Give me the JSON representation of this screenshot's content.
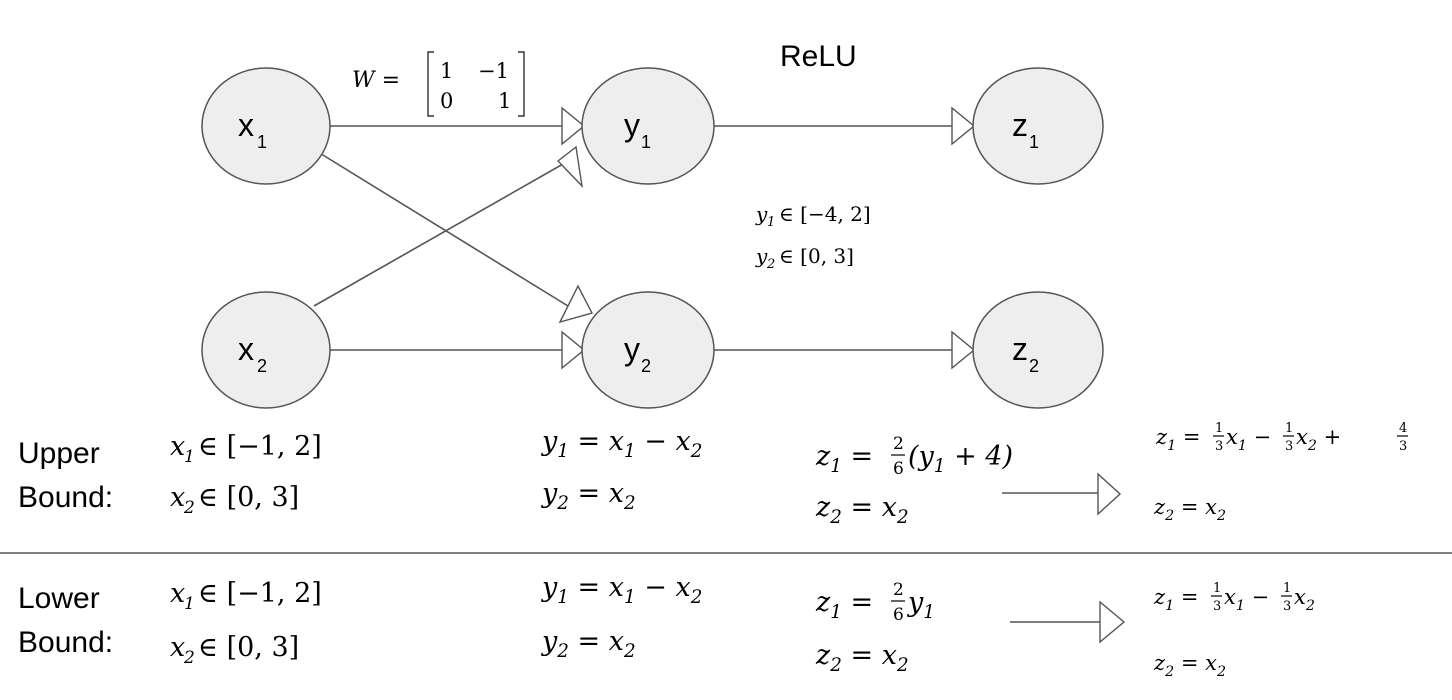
{
  "nodes": {
    "x1": {
      "base": "x",
      "sub": "1"
    },
    "x2": {
      "base": "x",
      "sub": "2"
    },
    "y1": {
      "base": "y",
      "sub": "1"
    },
    "y2": {
      "base": "y",
      "sub": "2"
    },
    "z1": {
      "base": "z",
      "sub": "1"
    },
    "z2": {
      "base": "z",
      "sub": "2"
    }
  },
  "weight_matrix": {
    "lhs": "W =",
    "rows": [
      [
        "1",
        "−1"
      ],
      [
        "0",
        "1"
      ]
    ]
  },
  "activation_label": "ReLU",
  "y_ranges": {
    "y1": {
      "var": "y",
      "sub": "1",
      "rel": "∈ [−4, 2]"
    },
    "y2": {
      "var": "y",
      "sub": "2",
      "rel": "∈ [0, 3]"
    }
  },
  "upper": {
    "label_line1": "Upper",
    "label_line2": "Bound:",
    "x1_range": "∈ [−1, 2]",
    "x2_range": "∈ [0, 3]",
    "y1_eq": "= x",
    "y1_eq_tail": "− x",
    "y2_eq": "= x",
    "z1_eq_prefix": "=",
    "z1_frac_num": "2",
    "z1_frac_den": "6",
    "z1_eq_tail": "(y",
    "z1_eq_tail2": " + 4)",
    "z2_eq": "= x",
    "result_z1_a": "=",
    "result_frac1_num": "1",
    "result_frac1_den": "3",
    "result_mid": "− ",
    "result_frac2_num": "1",
    "result_frac2_den": "3",
    "result_plus": "+",
    "result_frac3_num": "4",
    "result_frac3_den": "3",
    "result_z2": "= x"
  },
  "lower": {
    "label_line1": "Lower",
    "label_line2": "Bound:",
    "x1_range": "∈ [−1, 2]",
    "x2_range": "∈ [0, 3]",
    "y1_eq": "= x",
    "y1_eq_tail": "− x",
    "y2_eq": "= x",
    "z1_eq_prefix": "=",
    "z1_frac_num": "2",
    "z1_frac_den": "6",
    "z1_eq_tail": "y",
    "z2_eq": "= x",
    "result_z1_a": "=",
    "result_frac1_num": "1",
    "result_frac1_den": "3",
    "result_mid": "− ",
    "result_frac2_num": "1",
    "result_frac2_den": "3",
    "result_z2": "= x"
  }
}
